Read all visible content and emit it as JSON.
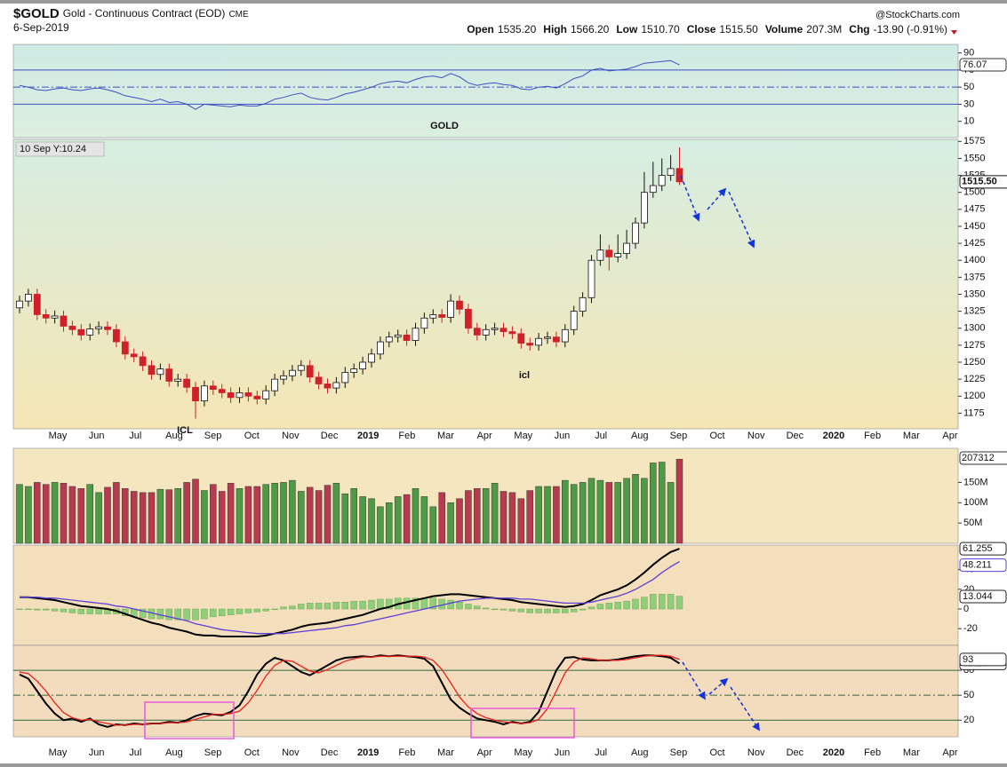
{
  "header": {
    "symbol": "$GOLD",
    "title": "Gold - Continuous Contract (EOD)",
    "exchange": "CME",
    "date": "6-Sep-2019",
    "source": "@StockCharts.com",
    "quote": [
      [
        "Open",
        "1535.20"
      ],
      [
        "High",
        "1566.20"
      ],
      [
        "Low",
        "1510.70"
      ],
      [
        "Close",
        "1515.50"
      ],
      [
        "Volume",
        "207.3M"
      ],
      [
        "Chg",
        "-13.90 (-0.91%)"
      ]
    ]
  },
  "chart_data": [
    {
      "type": "line",
      "color": "#3d4fc4",
      "ylim": [
        -9,
        100
      ],
      "yticks": [
        10,
        30,
        50,
        70,
        90
      ],
      "ref_lines": [
        {
          "value": 70,
          "dash": false
        },
        {
          "value": 50,
          "dash": true
        },
        {
          "value": 30,
          "dash": false
        }
      ],
      "values": [
        52,
        50,
        47,
        46,
        48,
        49,
        47,
        46,
        48,
        49,
        47,
        44,
        40,
        38,
        36,
        33,
        36,
        32,
        33,
        30,
        24,
        30,
        29,
        28,
        27,
        29,
        28,
        28,
        31,
        36,
        38,
        41,
        43,
        38,
        36,
        35,
        38,
        42,
        44,
        47,
        50,
        54,
        56,
        57,
        55,
        59,
        62,
        63,
        61,
        66,
        62,
        55,
        52,
        54,
        55,
        53,
        52,
        48,
        47,
        50,
        51,
        49,
        54,
        60,
        63,
        70,
        72,
        69,
        70,
        71,
        74,
        78,
        79,
        80,
        81,
        76.07
      ]
    },
    {
      "type": "candlestick",
      "title": "GOLD",
      "crosshair_label": "10 Sep Y:10.24",
      "annotations": [
        {
          "text": "ICL"
        },
        {
          "text": "icl"
        }
      ],
      "ylim": [
        1152,
        1578
      ],
      "yticks": [
        1175,
        1200,
        1225,
        1250,
        1275,
        1300,
        1325,
        1350,
        1375,
        1400,
        1425,
        1450,
        1475,
        1500,
        1525,
        1550,
        1575
      ],
      "last_label": "1515.50",
      "colors": {
        "up": "#ffffff",
        "down": "#d0202a",
        "outline": "#111111"
      },
      "open": [
        1330,
        1340,
        1350,
        1320,
        1315,
        1318,
        1303,
        1298,
        1290,
        1299,
        1302,
        1298,
        1280,
        1262,
        1258,
        1245,
        1232,
        1240,
        1222,
        1225,
        1213,
        1193,
        1215,
        1210,
        1205,
        1198,
        1205,
        1200,
        1196,
        1208,
        1225,
        1230,
        1238,
        1245,
        1228,
        1218,
        1212,
        1220,
        1235,
        1240,
        1250,
        1262,
        1280,
        1287,
        1290,
        1282,
        1300,
        1315,
        1320,
        1316,
        1340,
        1328,
        1300,
        1290,
        1298,
        1300,
        1295,
        1292,
        1278,
        1275,
        1285,
        1287,
        1280,
        1298,
        1325,
        1345,
        1400,
        1415,
        1405,
        1410,
        1425,
        1455,
        1500,
        1510,
        1525,
        1535.2
      ],
      "high": [
        1348,
        1358,
        1358,
        1328,
        1326,
        1326,
        1311,
        1306,
        1307,
        1310,
        1310,
        1306,
        1288,
        1270,
        1266,
        1253,
        1248,
        1248,
        1233,
        1233,
        1221,
        1223,
        1223,
        1218,
        1213,
        1213,
        1213,
        1208,
        1216,
        1233,
        1238,
        1246,
        1253,
        1253,
        1236,
        1226,
        1228,
        1243,
        1248,
        1258,
        1270,
        1288,
        1295,
        1298,
        1298,
        1308,
        1323,
        1328,
        1328,
        1350,
        1348,
        1336,
        1308,
        1306,
        1308,
        1308,
        1303,
        1300,
        1286,
        1293,
        1295,
        1295,
        1306,
        1333,
        1353,
        1408,
        1438,
        1423,
        1438,
        1445,
        1463,
        1530,
        1545,
        1550,
        1555,
        1566.2
      ],
      "low": [
        1322,
        1332,
        1312,
        1307,
        1307,
        1295,
        1290,
        1282,
        1282,
        1291,
        1290,
        1272,
        1254,
        1250,
        1237,
        1224,
        1224,
        1214,
        1214,
        1205,
        1167,
        1185,
        1202,
        1197,
        1190,
        1190,
        1192,
        1188,
        1188,
        1200,
        1217,
        1222,
        1230,
        1220,
        1210,
        1204,
        1204,
        1212,
        1227,
        1232,
        1242,
        1254,
        1272,
        1279,
        1274,
        1274,
        1292,
        1307,
        1308,
        1308,
        1320,
        1292,
        1282,
        1282,
        1290,
        1287,
        1284,
        1270,
        1267,
        1267,
        1277,
        1272,
        1272,
        1290,
        1317,
        1337,
        1392,
        1385,
        1397,
        1402,
        1417,
        1447,
        1492,
        1502,
        1517,
        1510.7
      ],
      "close": [
        1340,
        1350,
        1320,
        1315,
        1318,
        1303,
        1298,
        1290,
        1299,
        1302,
        1298,
        1280,
        1262,
        1258,
        1245,
        1232,
        1240,
        1222,
        1225,
        1213,
        1193,
        1215,
        1210,
        1205,
        1198,
        1205,
        1200,
        1196,
        1208,
        1225,
        1230,
        1238,
        1245,
        1228,
        1218,
        1212,
        1220,
        1235,
        1240,
        1250,
        1262,
        1280,
        1287,
        1290,
        1282,
        1300,
        1315,
        1320,
        1316,
        1340,
        1328,
        1300,
        1290,
        1298,
        1300,
        1295,
        1292,
        1278,
        1275,
        1285,
        1287,
        1280,
        1298,
        1325,
        1345,
        1400,
        1415,
        1405,
        1410,
        1425,
        1455,
        1500,
        1510,
        1525,
        1535,
        1515.5
      ],
      "x_labels": [
        "May",
        "Jun",
        "Jul",
        "Aug",
        "Sep",
        "Oct",
        "Nov",
        "Dec",
        "2019",
        "Feb",
        "Mar",
        "Apr",
        "May",
        "Jun",
        "Jul",
        "Aug",
        "Sep",
        "Oct",
        "Nov",
        "Dec",
        "2020",
        "Feb",
        "Mar",
        "Apr"
      ]
    },
    {
      "type": "bar",
      "ylim": [
        0,
        234
      ],
      "yticks": [
        {
          "value": 50,
          "label": "50M"
        },
        {
          "value": 100,
          "label": "100M"
        },
        {
          "value": 150,
          "label": "150M"
        }
      ],
      "last_label": "207312",
      "colors": {
        "up": "#4f9a45",
        "down": "#b83a4e"
      },
      "values": [
        145,
        140,
        150,
        145,
        150,
        148,
        140,
        135,
        145,
        125,
        138,
        150,
        135,
        128,
        125,
        125,
        133,
        132,
        135,
        150,
        158,
        130,
        145,
        128,
        148,
        135,
        140,
        140,
        145,
        148,
        150,
        155,
        128,
        138,
        130,
        143,
        148,
        122,
        135,
        115,
        110,
        90,
        100,
        115,
        120,
        135,
        115,
        90,
        125,
        100,
        110,
        130,
        135,
        135,
        148,
        128,
        125,
        110,
        130,
        140,
        140,
        140,
        155,
        145,
        150,
        160,
        155,
        150,
        150,
        160,
        170,
        160,
        198,
        200,
        150,
        207.312
      ]
    },
    {
      "type": "line",
      "ylim": [
        -37,
        65
      ],
      "yticks": [
        -20,
        0,
        20,
        40
      ],
      "series": [
        {
          "color": "#000000",
          "values": [
            12,
            12,
            11,
            10,
            9,
            7,
            5,
            3,
            2,
            1,
            0,
            -2,
            -5,
            -8,
            -11,
            -14,
            -16,
            -19,
            -21,
            -23,
            -26,
            -27,
            -27,
            -28,
            -28,
            -28,
            -28,
            -28,
            -27,
            -25,
            -23,
            -21,
            -18,
            -16,
            -15,
            -14,
            -12,
            -10,
            -8,
            -6,
            -3,
            0,
            2,
            5,
            7,
            9,
            11,
            13,
            14,
            15,
            15,
            14,
            13,
            12,
            11,
            10,
            9,
            7,
            6,
            5,
            4,
            3,
            2,
            3,
            5,
            9,
            14,
            17,
            20,
            24,
            30,
            37,
            45,
            52,
            58,
            61.255
          ]
        },
        {
          "color": "#5b3fd8",
          "values": [
            12,
            12,
            12,
            11,
            11,
            10,
            9,
            8,
            7,
            6,
            5,
            3,
            2,
            0,
            -2,
            -4,
            -6,
            -8,
            -10,
            -12,
            -15,
            -17,
            -19,
            -21,
            -22,
            -23,
            -24,
            -25,
            -25,
            -25,
            -25,
            -24,
            -23,
            -22,
            -21,
            -20,
            -19,
            -17,
            -16,
            -14,
            -12,
            -10,
            -8,
            -6,
            -4,
            -2,
            0,
            2,
            4,
            6,
            8,
            9,
            10,
            11,
            11,
            11,
            11,
            10,
            10,
            9,
            8,
            7,
            6,
            6,
            6,
            7,
            9,
            11,
            13,
            16,
            20,
            25,
            30,
            37,
            43,
            48.211
          ]
        }
      ],
      "histogram": {
        "color": "#8fcf7a",
        "values": [
          0,
          0,
          -1,
          -1,
          -2,
          -3,
          -4,
          -5,
          -5,
          -5,
          -5,
          -5,
          -7,
          -8,
          -9,
          -10,
          -10,
          -11,
          -11,
          -11,
          -11,
          -10,
          -8,
          -7,
          -6,
          -5,
          -4,
          -3,
          -2,
          0,
          2,
          3,
          5,
          6,
          6,
          6,
          7,
          7,
          8,
          8,
          9,
          10,
          10,
          11,
          11,
          11,
          11,
          11,
          10,
          9,
          7,
          5,
          3,
          1,
          0,
          -1,
          -2,
          -3,
          -4,
          -4,
          -4,
          -4,
          -4,
          -3,
          -1,
          2,
          5,
          6,
          7,
          8,
          10,
          12,
          15,
          15,
          15,
          13.044
        ]
      }
    },
    {
      "type": "line",
      "ylim": [
        0,
        110
      ],
      "yticks": [
        20,
        50,
        80
      ],
      "ref_lines": [
        {
          "value": 80,
          "dash": false
        },
        {
          "value": 50,
          "dash": true
        },
        {
          "value": 20,
          "dash": false
        }
      ],
      "series": [
        {
          "color": "#000000",
          "values": [
            75,
            70,
            55,
            40,
            28,
            20,
            22,
            18,
            22,
            15,
            12,
            15,
            14,
            16,
            15,
            16,
            16,
            18,
            17,
            20,
            25,
            28,
            27,
            26,
            30,
            38,
            55,
            75,
            88,
            95,
            92,
            85,
            78,
            74,
            80,
            86,
            92,
            95,
            96,
            97,
            96,
            98,
            97,
            98,
            97,
            96,
            94,
            85,
            65,
            45,
            35,
            28,
            22,
            20,
            18,
            15,
            18,
            16,
            18,
            30,
            55,
            80,
            95,
            96,
            93,
            92,
            92,
            92,
            93,
            95,
            97,
            98,
            98,
            97,
            95,
            88.26
          ]
        },
        {
          "color": "#e8201c",
          "values": [
            78,
            76,
            67,
            55,
            41,
            29,
            23,
            20,
            21,
            18,
            16,
            14,
            14,
            15,
            15,
            16,
            16,
            17,
            17,
            18,
            21,
            24,
            27,
            27,
            28,
            31,
            41,
            56,
            73,
            86,
            92,
            91,
            85,
            79,
            77,
            81,
            86,
            91,
            94,
            96,
            96,
            97,
            97,
            97,
            97,
            97,
            96,
            92,
            81,
            65,
            48,
            36,
            28,
            23,
            20,
            18,
            17,
            16,
            17,
            21,
            34,
            55,
            77,
            90,
            95,
            94,
            92,
            92,
            92,
            93,
            95,
            97,
            98,
            98,
            97,
            93
          ]
        }
      ],
      "x_labels": [
        "May",
        "Jun",
        "Jul",
        "Aug",
        "Sep",
        "Oct",
        "Nov",
        "Dec",
        "2019",
        "Feb",
        "Mar",
        "Apr",
        "May",
        "Jun",
        "Jul",
        "Aug",
        "Sep",
        "Oct",
        "Nov",
        "Dec",
        "2020",
        "Feb",
        "Mar",
        "Apr"
      ]
    }
  ]
}
